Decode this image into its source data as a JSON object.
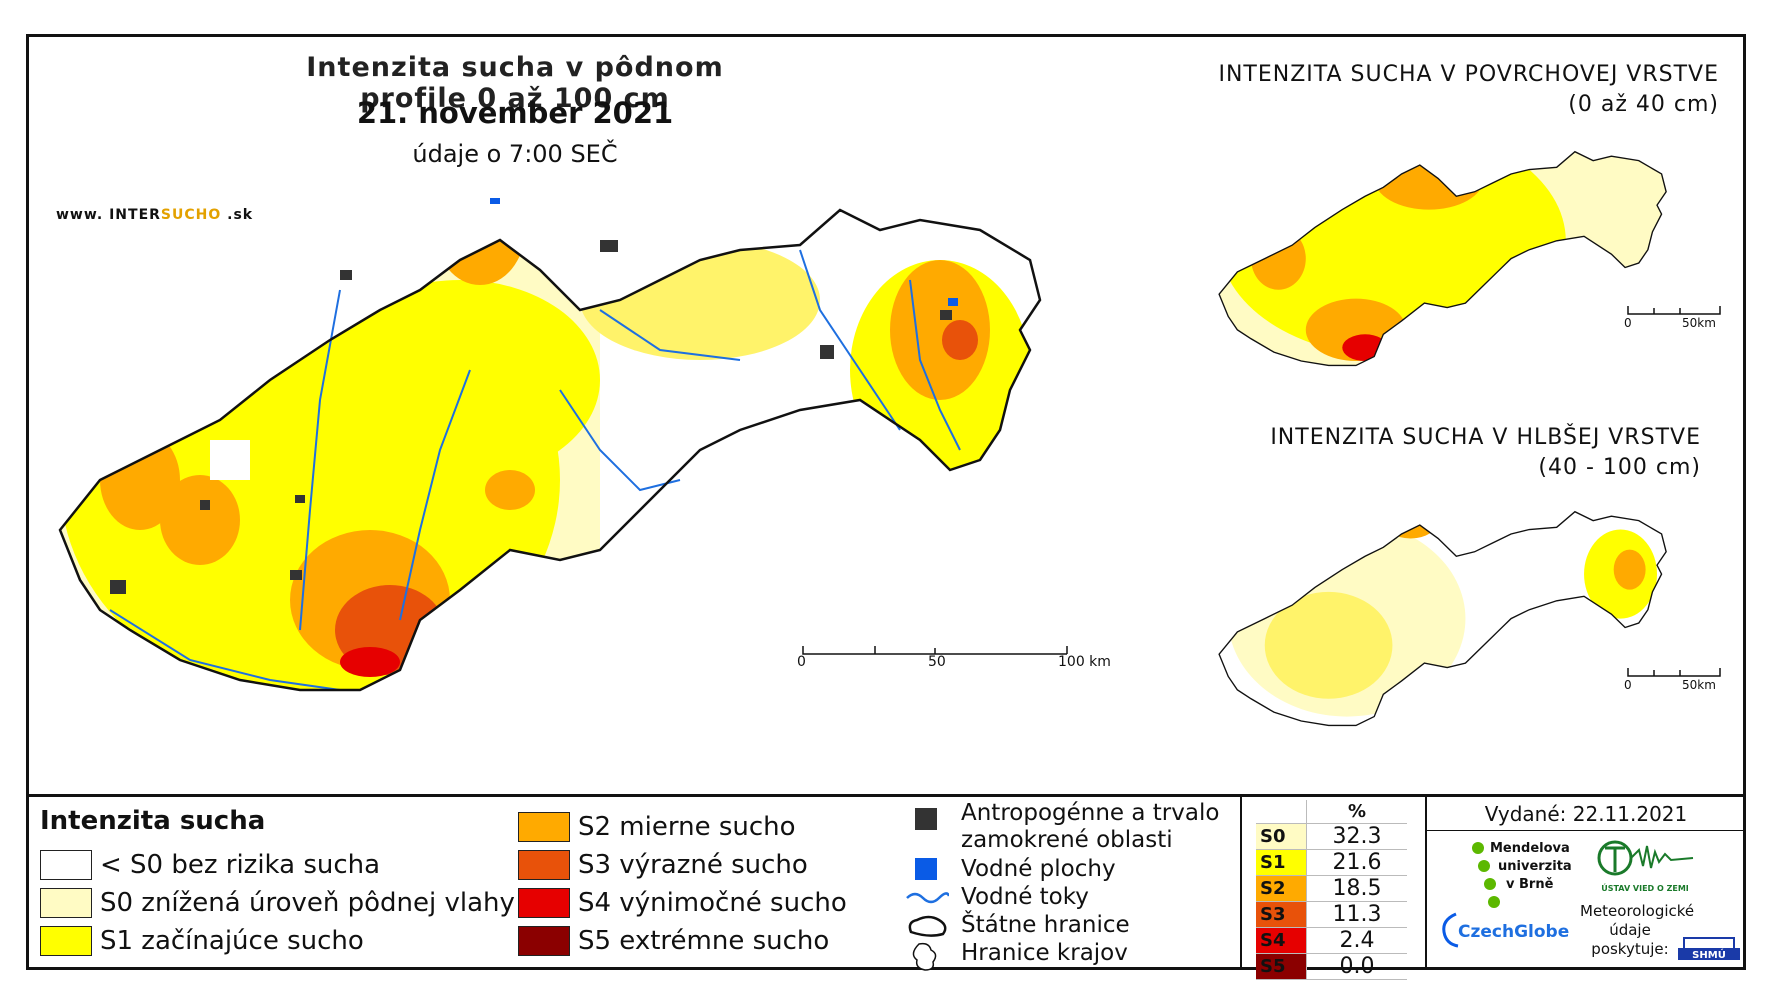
{
  "map": {
    "title": "Intenzita sucha v pôdnom profile 0 až 100 cm",
    "date": "21. november 2021",
    "subtitle": "údaje o 7:00 SEČ",
    "website_prefix": "www. INTER",
    "website_brand": "SUCHO",
    "website_suffix": " .sk",
    "scale": {
      "ticks": [
        "0",
        "50",
        "100 km"
      ]
    }
  },
  "insets": [
    {
      "title_line1": "INTENZITA SUCHA V POVRCHOVEJ VRSTVE",
      "title_line2": "(0 až 40 cm)",
      "scale": [
        "0",
        "50km"
      ]
    },
    {
      "title_line1": "INTENZITA SUCHA V HLBŠEJ VRSTVE",
      "title_line2": "(40 - 100 cm)",
      "scale": [
        "0",
        "50km"
      ]
    }
  ],
  "legend": {
    "title": "Intenzita sucha",
    "classes": [
      {
        "label": "< S0 bez rizika sucha",
        "color": "#ffffff"
      },
      {
        "label": "S0 znížená úroveň pôdnej vlahy",
        "color": "#fffbc4"
      },
      {
        "label": "S1 začínajúce sucho",
        "color": "#ffff00"
      },
      {
        "label": "S2 mierne sucho",
        "color": "#ffaa00"
      },
      {
        "label": "S3 výrazné sucho",
        "color": "#e8520a"
      },
      {
        "label": "S4 výnimočné sucho",
        "color": "#e60000"
      },
      {
        "label": "S5 extrémne sucho",
        "color": "#8b0000"
      }
    ],
    "symbols": [
      {
        "label": "Antropogénne a trvalo zamokrené oblasti",
        "icon": "dark-square-icon",
        "color": "#333333"
      },
      {
        "label": "Vodné plochy",
        "icon": "blue-square-icon",
        "color": "#0a5be6"
      },
      {
        "label": "Vodné toky",
        "icon": "river-line-icon",
        "color": "#1e6fe0"
      },
      {
        "label": "Štátne hranice",
        "icon": "state-border-icon"
      },
      {
        "label": "Hranice krajov",
        "icon": "region-border-icon"
      }
    ]
  },
  "percentages": {
    "header": "%",
    "rows": [
      {
        "key": "S0",
        "value": "32.3",
        "color": "#fffbc4"
      },
      {
        "key": "S1",
        "value": "21.6",
        "color": "#ffff00"
      },
      {
        "key": "S2",
        "value": "18.5",
        "color": "#ffaa00"
      },
      {
        "key": "S3",
        "value": "11.3",
        "color": "#e8520a"
      },
      {
        "key": "S4",
        "value": "2.4",
        "color": "#e60000"
      },
      {
        "key": "S5",
        "value": "0.0",
        "color": "#8b0000"
      }
    ]
  },
  "footer": {
    "issued": "Vydané: 22.11.2021",
    "mendel": [
      "Mendelova",
      "univerzita",
      "v Brně"
    ],
    "czechglobe": "CzechGlobe",
    "ustav": "ÚSTAV VIED O ZEMI",
    "provider": [
      "Meteorologické",
      "údaje",
      "poskytuje:"
    ],
    "shmu": "SHMÚ"
  }
}
